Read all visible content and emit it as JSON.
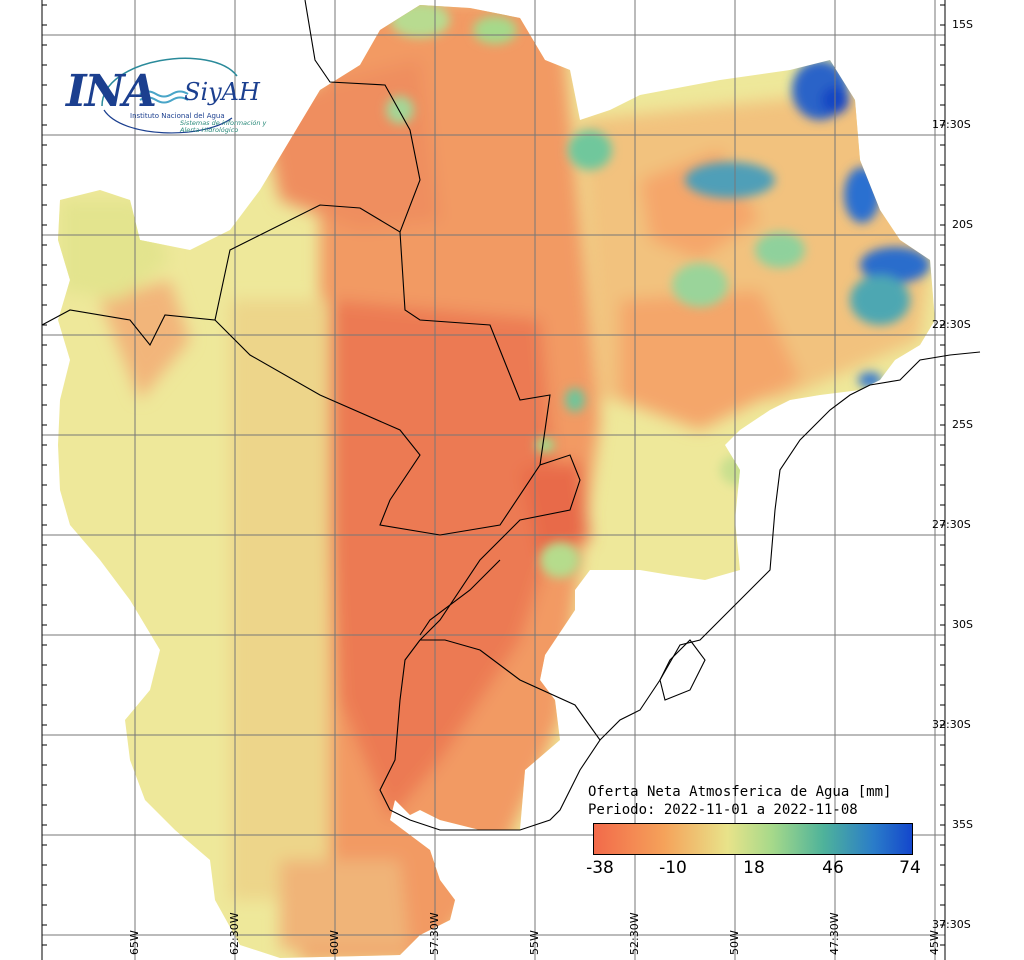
{
  "logo": {
    "brand": "INA",
    "product": "SiyAH",
    "institution": "Instituto Nacional del Agua",
    "system": "Sistemas de información y Alerta Hidrológico"
  },
  "legend": {
    "title_line1": "Oferta Neta Atmosferica de Agua [mm]",
    "title_line2": "Periodo: 2022-11-01 a 2022-11-08",
    "ticks": [
      "-38",
      "-10",
      "18",
      "46",
      "74"
    ],
    "colors": [
      "#f26a4a",
      "#f5a25a",
      "#e8e38a",
      "#a6d98a",
      "#4fb39a",
      "#2a7cc9",
      "#1447cc"
    ]
  },
  "grid": {
    "lat_labels": [
      "15S",
      "17:30S",
      "20S",
      "22:30S",
      "25S",
      "27:30S",
      "30S",
      "32:30S",
      "35S",
      "37:30S"
    ],
    "lon_labels": [
      "65W",
      "62:30W",
      "60W",
      "57:30W",
      "55W",
      "52:30W",
      "50W",
      "47:30W",
      "45W"
    ]
  }
}
